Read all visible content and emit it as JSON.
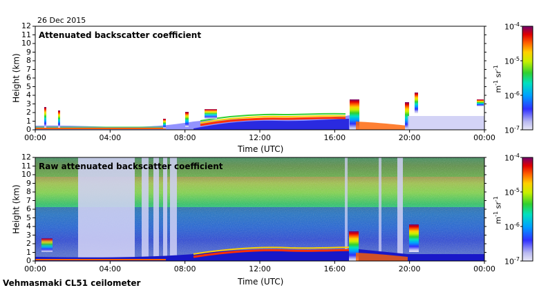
{
  "date": "26 Dec 2015",
  "caption": "Vehmasmaki CL51 ceilometer",
  "chart_data": [
    {
      "type": "heatmap",
      "title": "Attenuated backscatter coefficient",
      "xlabel": "Time (UTC)",
      "ylabel": "Height (km)",
      "x_tick_labels": [
        "00:00",
        "04:00",
        "08:00",
        "12:00",
        "16:00",
        "20:00",
        "00:00"
      ],
      "x_range_hours": [
        0,
        24
      ],
      "y_ticks": [
        0,
        1,
        2,
        3,
        4,
        5,
        6,
        7,
        8,
        9,
        10,
        11,
        12
      ],
      "ylim": [
        0,
        12
      ],
      "colorbar": {
        "scale": "log",
        "range": [
          1e-07,
          0.0001
        ],
        "tick_bases": [
          "10",
          "10",
          "10",
          "10"
        ],
        "tick_exponents": [
          "-7",
          "-6",
          "-5",
          "-4"
        ],
        "unit_base_1": "m",
        "unit_exp_1": "-1",
        "unit_base_2": "sr",
        "unit_exp_2": "-1"
      }
    },
    {
      "type": "heatmap",
      "title": "Raw attenuated backscatter coefficient",
      "xlabel": "Time (UTC)",
      "ylabel": "Height (km)",
      "x_tick_labels": [
        "00:00",
        "04:00",
        "08:00",
        "12:00",
        "16:00",
        "20:00",
        "00:00"
      ],
      "x_range_hours": [
        0,
        24
      ],
      "y_ticks": [
        0,
        1,
        2,
        3,
        4,
        5,
        6,
        7,
        8,
        9,
        10,
        11,
        12
      ],
      "ylim": [
        0,
        12
      ],
      "colorbar": {
        "scale": "log",
        "range": [
          1e-07,
          0.0001
        ],
        "tick_bases": [
          "10",
          "10",
          "10",
          "10"
        ],
        "tick_exponents": [
          "-7",
          "-6",
          "-5",
          "-4"
        ],
        "unit_base_1": "m",
        "unit_exp_1": "-1",
        "unit_base_2": "sr",
        "unit_exp_2": "-1"
      }
    }
  ]
}
